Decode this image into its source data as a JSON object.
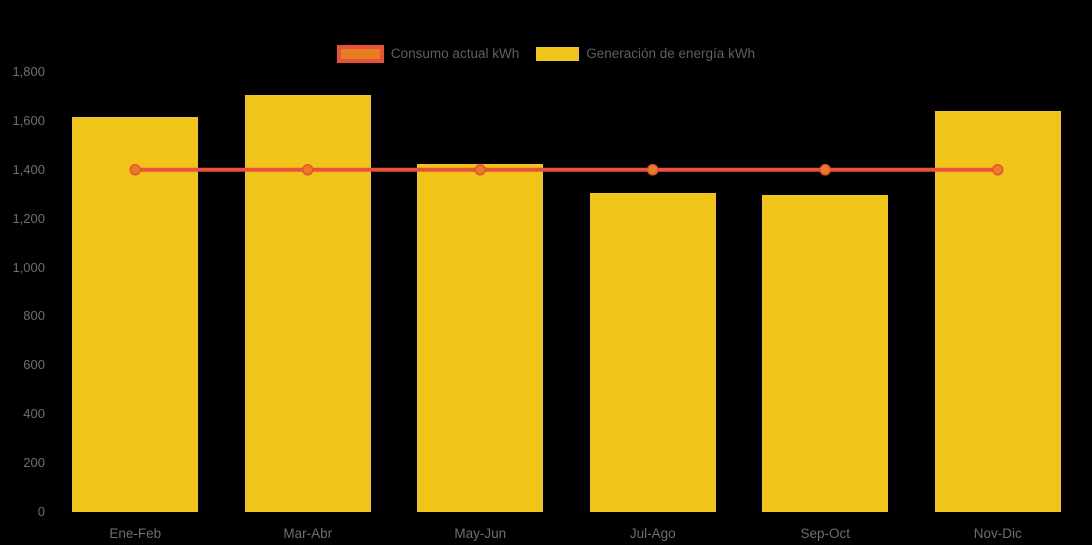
{
  "chart_data": {
    "type": "bar",
    "title": "",
    "xlabel": "",
    "ylabel": "",
    "categories": [
      "Ene-Feb",
      "Mar-Abr",
      "May-Jun",
      "Jul-Ago",
      "Sep-Oct",
      "Nov-Dic"
    ],
    "series": [
      {
        "name": "Consumo actual kWh",
        "type": "line",
        "color": "#e8513a",
        "marker_color": "#e67e22",
        "values": [
          1400,
          1400,
          1400,
          1400,
          1400,
          1400
        ]
      },
      {
        "name": "Generación de energía kWh",
        "type": "bar",
        "color": "#f0c419",
        "values": [
          1615,
          1705,
          1425,
          1305,
          1295,
          1640
        ]
      }
    ],
    "ylim": [
      0,
      1800
    ],
    "ytick_step": 200,
    "ytick_labels": [
      "0",
      "200",
      "400",
      "600",
      "800",
      "1,000",
      "1,200",
      "1,400",
      "1,600",
      "1,800"
    ],
    "grid": false,
    "legend_position": "top-center",
    "background_color": "#000000",
    "axis_text_color": "#6e6e6e",
    "legend_text_color": "#5f5f5f"
  }
}
